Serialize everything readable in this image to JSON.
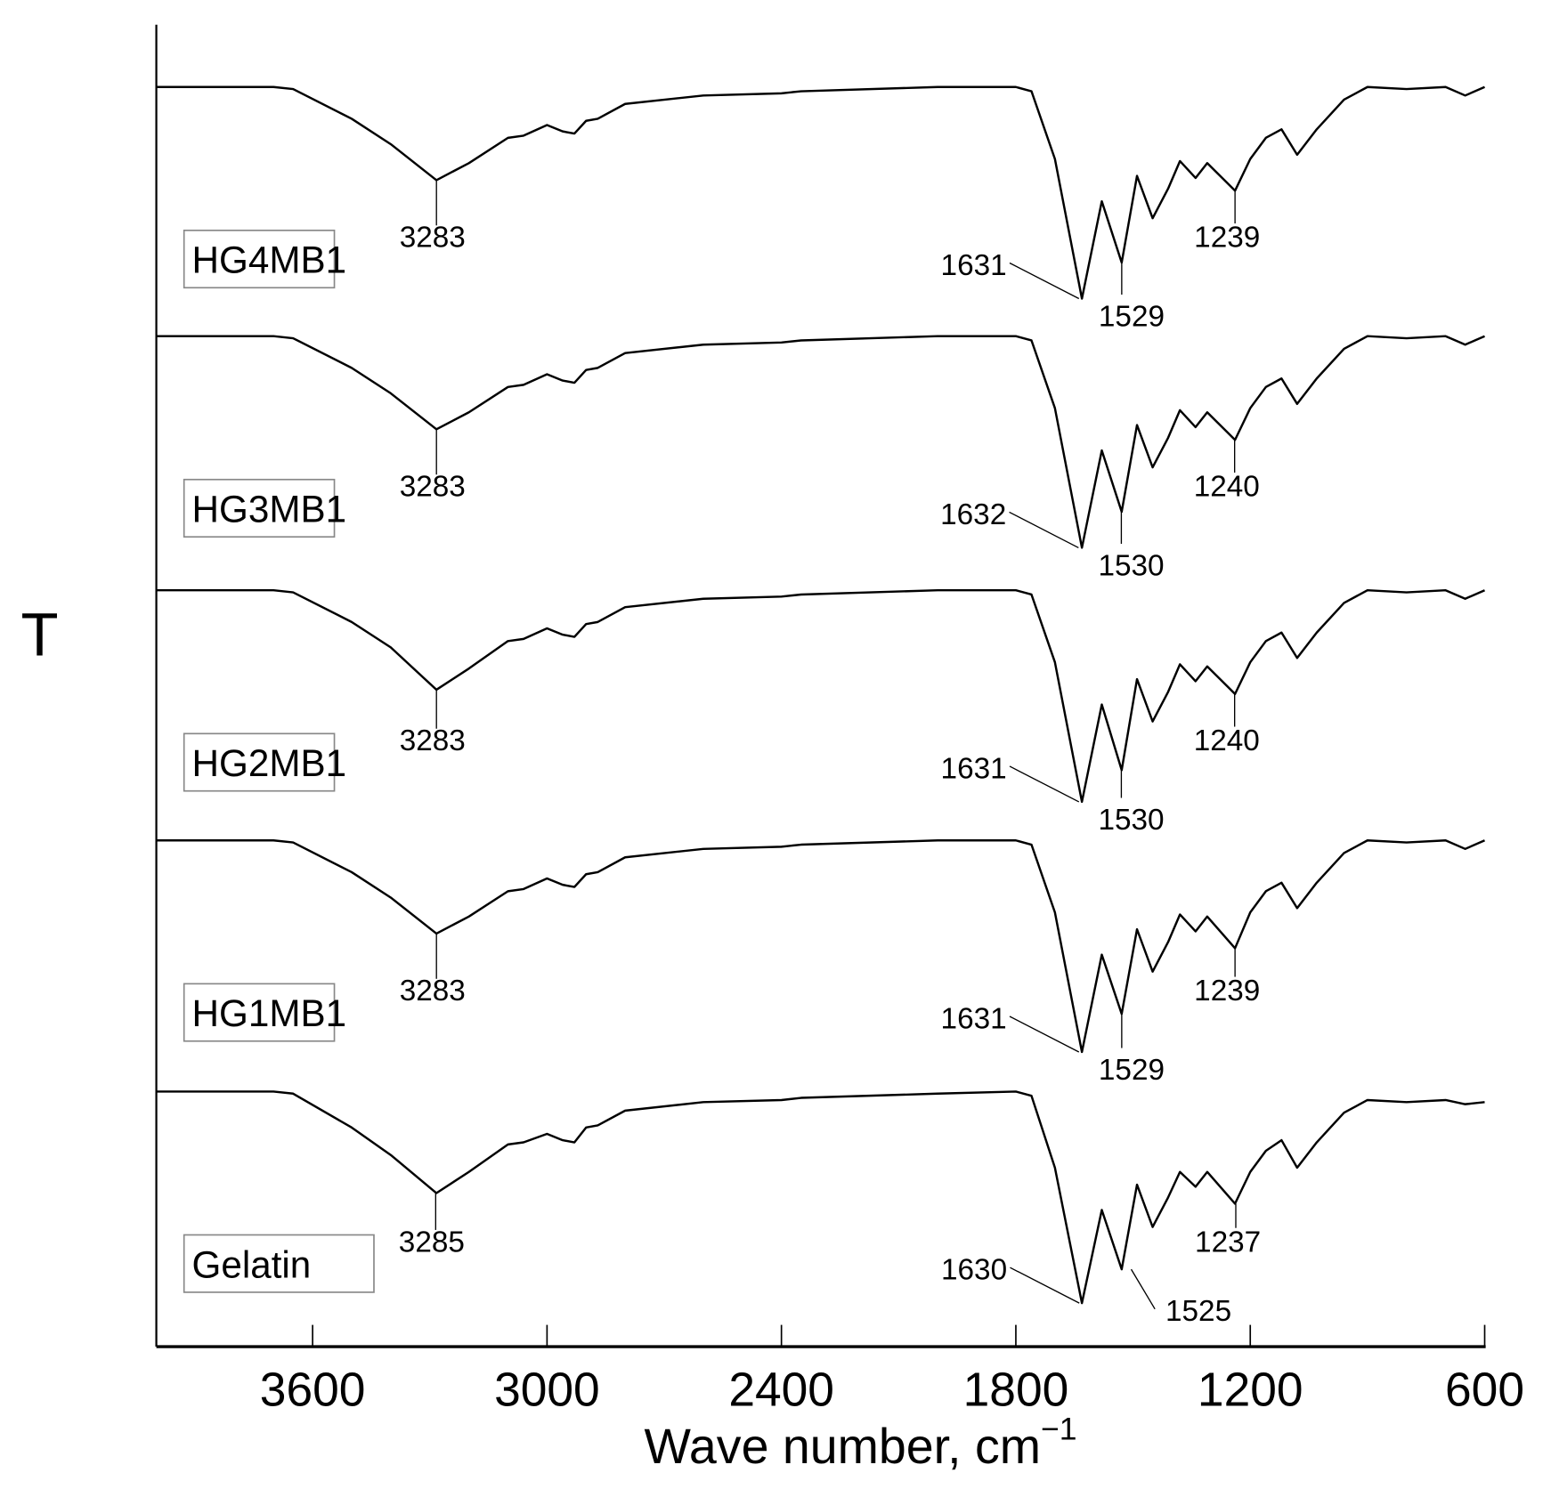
{
  "chart_data": {
    "type": "line",
    "title": "",
    "xlabel": "Wave number, cm",
    "xlabel_superscript": "−1",
    "ylabel": "T",
    "xlim": [
      4000,
      600
    ],
    "x_reversed": true,
    "xticks": [
      "3600",
      "3000",
      "2400",
      "1800",
      "1200",
      "600"
    ],
    "xtick_values": [
      3600,
      3000,
      2400,
      1800,
      1200,
      600
    ],
    "grid": false,
    "stacked_offset": true,
    "y_units": "relative transmittance (%), each trace vertically offset",
    "x": [
      4000,
      3700,
      3650,
      3500,
      3400,
      3283,
      3200,
      3100,
      3060,
      3000,
      2960,
      2930,
      2900,
      2870,
      2800,
      2600,
      2400,
      2350,
      2000,
      1800,
      1760,
      1700,
      1631,
      1580,
      1529,
      1490,
      1450,
      1410,
      1380,
      1340,
      1310,
      1239,
      1200,
      1160,
      1120,
      1080,
      1030,
      960,
      900,
      800,
      700,
      650,
      600
    ],
    "series": [
      {
        "name": "HG4MB1",
        "values": [
          100,
          100,
          99,
          85,
          73,
          56,
          64,
          76,
          77,
          82,
          79,
          78,
          84,
          85,
          92,
          96,
          97,
          98,
          100,
          100,
          98,
          66,
          0,
          46,
          17,
          58,
          38,
          52,
          65,
          57,
          64,
          51,
          66,
          76,
          80,
          68,
          80,
          94,
          100,
          99,
          100,
          96,
          100
        ],
        "peaks": [
          {
            "x": 3283,
            "label": "3283"
          },
          {
            "x": 1631,
            "label": "1631"
          },
          {
            "x": 1529,
            "label": "1529"
          },
          {
            "x": 1239,
            "label": "1239"
          }
        ]
      },
      {
        "name": "HG3MB1",
        "values": [
          100,
          100,
          99,
          85,
          73,
          56,
          64,
          76,
          77,
          82,
          79,
          78,
          84,
          85,
          92,
          96,
          97,
          98,
          100,
          100,
          98,
          66,
          0,
          46,
          17,
          58,
          38,
          52,
          65,
          57,
          64,
          51,
          66,
          76,
          80,
          68,
          80,
          94,
          100,
          99,
          100,
          96,
          100
        ],
        "peaks": [
          {
            "x": 3283,
            "label": "3283"
          },
          {
            "x": 1632,
            "label": "1632"
          },
          {
            "x": 1530,
            "label": "1530"
          },
          {
            "x": 1240,
            "label": "1240"
          }
        ]
      },
      {
        "name": "HG2MB1",
        "values": [
          100,
          100,
          99,
          85,
          73,
          53,
          63,
          76,
          77,
          82,
          79,
          78,
          84,
          85,
          92,
          96,
          97,
          98,
          100,
          100,
          98,
          66,
          0,
          46,
          15,
          58,
          38,
          52,
          65,
          57,
          64,
          51,
          66,
          76,
          80,
          68,
          80,
          94,
          100,
          99,
          100,
          96,
          100
        ],
        "peaks": [
          {
            "x": 3283,
            "label": "3283"
          },
          {
            "x": 1631,
            "label": "1631"
          },
          {
            "x": 1530,
            "label": "1530"
          },
          {
            "x": 1240,
            "label": "1240"
          }
        ]
      },
      {
        "name": "HG1MB1",
        "values": [
          100,
          100,
          99,
          85,
          73,
          56,
          64,
          76,
          77,
          82,
          79,
          78,
          84,
          85,
          92,
          96,
          97,
          98,
          100,
          100,
          98,
          66,
          0,
          46,
          18,
          58,
          38,
          52,
          65,
          57,
          64,
          49,
          66,
          76,
          80,
          68,
          80,
          94,
          100,
          99,
          100,
          96,
          100
        ],
        "peaks": [
          {
            "x": 3283,
            "label": "3283"
          },
          {
            "x": 1631,
            "label": "1631"
          },
          {
            "x": 1529,
            "label": "1529"
          },
          {
            "x": 1239,
            "label": "1239"
          }
        ]
      },
      {
        "name": "Gelatin",
        "values": [
          100,
          100,
          99,
          83,
          70,
          52,
          62,
          75,
          76,
          80,
          77,
          76,
          83,
          84,
          91,
          95,
          96,
          97,
          99,
          100,
          98,
          64,
          0,
          44,
          16,
          56,
          36,
          50,
          62,
          55,
          62,
          47,
          62,
          72,
          77,
          64,
          76,
          90,
          96,
          95,
          96,
          94,
          95
        ],
        "peaks": [
          {
            "x": 3285,
            "label": "3285"
          },
          {
            "x": 1630,
            "label": "1630"
          },
          {
            "x": 1525,
            "label": "1525"
          },
          {
            "x": 1237,
            "label": "1237"
          }
        ]
      }
    ]
  }
}
